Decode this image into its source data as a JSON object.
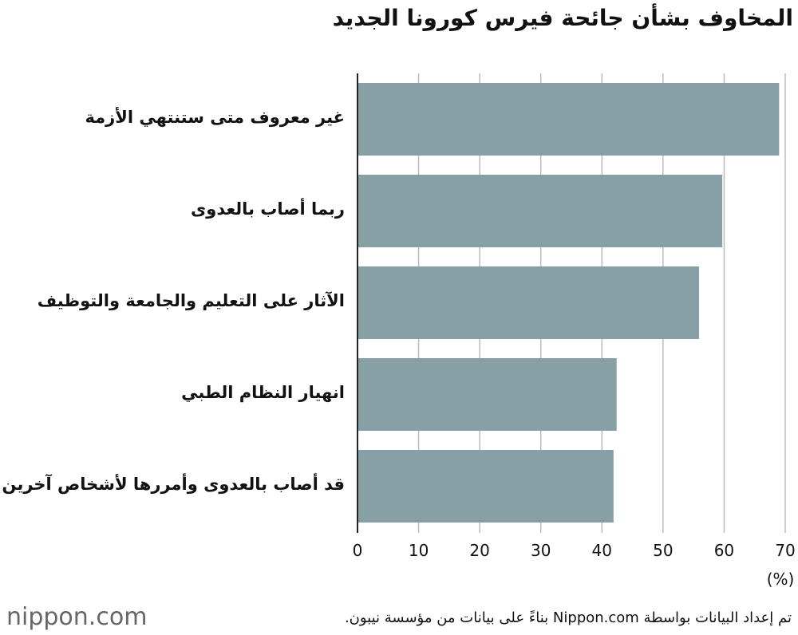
{
  "chart_data": {
    "type": "barh",
    "title": "المخاوف بشأن جائحة فيرس كورونا الجديد",
    "categories": [
      "غير معروف متى ستنتهي الأزمة",
      "ربما أصاب بالعدوى",
      "الآثار على التعليم والجامعة والتوظيف",
      "انهيار النظام الطبي",
      "قد أصاب بالعدوى وأمررها لأشخاص آخرين"
    ],
    "values": [
      69,
      59.7,
      55.9,
      42.4,
      41.9
    ],
    "color": "#87a0a6",
    "xlim": [
      0,
      70
    ],
    "xticks": [
      0,
      10,
      20,
      30,
      40,
      50,
      60,
      70
    ],
    "x_unit": "(%)",
    "grid": true,
    "source": "تم إعداد البيانات بواسطة Nippon.com بناءً على بيانات من مؤسسة نيبون.",
    "logo": "nippon.com"
  }
}
